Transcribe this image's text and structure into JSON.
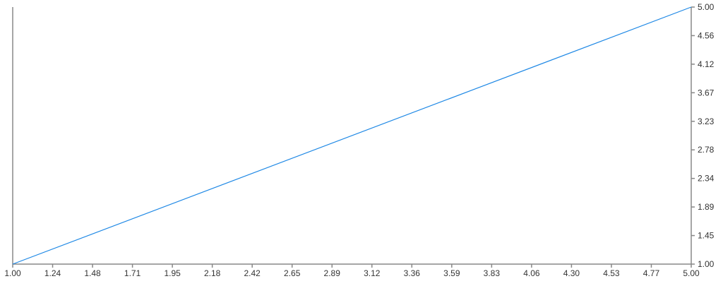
{
  "chart_data": {
    "type": "line",
    "title": "",
    "xlabel": "",
    "ylabel": "",
    "xlim": [
      1.0,
      5.0
    ],
    "ylim": [
      1.0,
      5.0
    ],
    "grid": false,
    "y_axis_position": "right",
    "x_tick_labels": [
      "1.00",
      "1.24",
      "1.48",
      "1.71",
      "1.95",
      "2.18",
      "2.42",
      "2.65",
      "2.89",
      "3.12",
      "3.36",
      "3.59",
      "3.83",
      "4.06",
      "4.30",
      "4.53",
      "4.77",
      "5.00"
    ],
    "y_tick_labels": [
      "1.00",
      "1.45",
      "1.89",
      "2.34",
      "2.78",
      "3.23",
      "3.67",
      "4.12",
      "4.56",
      "5.00"
    ],
    "series": [
      {
        "x": [
          1.0,
          5.0
        ],
        "y": [
          1.0,
          5.0
        ],
        "color": "#1e88e5"
      }
    ],
    "colors": {
      "axis": "#888888",
      "line": "#1e88e5"
    }
  }
}
